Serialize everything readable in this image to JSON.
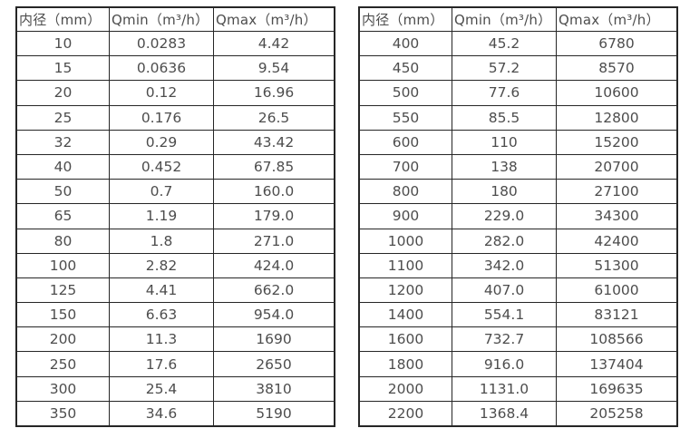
{
  "colors": {
    "border": "#262626",
    "text": "#4d4d4d",
    "background": "#ffffff"
  },
  "tables": [
    {
      "name": "flow-spec-small-diameters",
      "headers": [
        "内径（mm）",
        "Qmin（m³/h）",
        "Qmax（m³/h）"
      ],
      "rows": [
        [
          "10",
          "0.0283",
          "4.42"
        ],
        [
          "15",
          "0.0636",
          "9.54"
        ],
        [
          "20",
          "0.12",
          "16.96"
        ],
        [
          "25",
          "0.176",
          "26.5"
        ],
        [
          "32",
          "0.29",
          "43.42"
        ],
        [
          "40",
          "0.452",
          "67.85"
        ],
        [
          "50",
          "0.7",
          "160.0"
        ],
        [
          "65",
          "1.19",
          "179.0"
        ],
        [
          "80",
          "1.8",
          "271.0"
        ],
        [
          "100",
          "2.82",
          "424.0"
        ],
        [
          "125",
          "4.41",
          "662.0"
        ],
        [
          "150",
          "6.63",
          "954.0"
        ],
        [
          "200",
          "11.3",
          "1690"
        ],
        [
          "250",
          "17.6",
          "2650"
        ],
        [
          "300",
          "25.4",
          "3810"
        ],
        [
          "350",
          "34.6",
          "5190"
        ]
      ]
    },
    {
      "name": "flow-spec-large-diameters",
      "headers": [
        "内径（mm）",
        "Qmin（m³/h）",
        "Qmax（m³/h）"
      ],
      "rows": [
        [
          "400",
          "45.2",
          "6780"
        ],
        [
          "450",
          "57.2",
          "8570"
        ],
        [
          "500",
          "77.6",
          "10600"
        ],
        [
          "550",
          "85.5",
          "12800"
        ],
        [
          "600",
          "110",
          "15200"
        ],
        [
          "700",
          "138",
          "20700"
        ],
        [
          "800",
          "180",
          "27100"
        ],
        [
          "900",
          "229.0",
          "34300"
        ],
        [
          "1000",
          "282.0",
          "42400"
        ],
        [
          "1100",
          "342.0",
          "51300"
        ],
        [
          "1200",
          "407.0",
          "61000"
        ],
        [
          "1400",
          "554.1",
          "83121"
        ],
        [
          "1600",
          "732.7",
          "108566"
        ],
        [
          "1800",
          "916.0",
          "137404"
        ],
        [
          "2000",
          "1131.0",
          "169635"
        ],
        [
          "2200",
          "1368.4",
          "205258"
        ]
      ]
    }
  ]
}
